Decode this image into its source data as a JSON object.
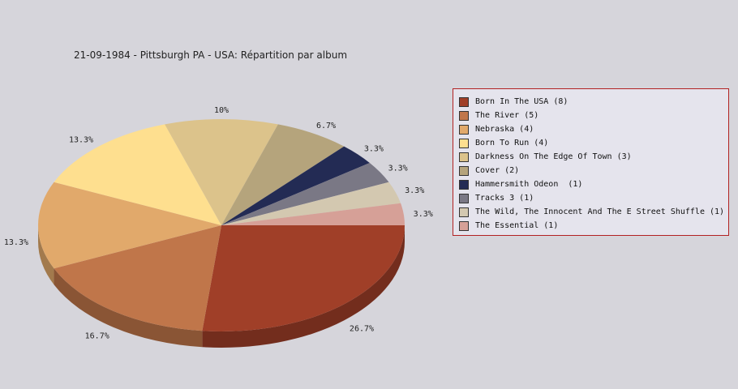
{
  "title": "21-09-1984 - Pittsburgh PA - USA:  Répartition par album",
  "chart_data": {
    "type": "pie",
    "title": "21-09-1984 - Pittsburgh PA - USA:  Répartition par album",
    "slices": [
      {
        "label": "Born In The USA (8)",
        "value": 8,
        "percent": "26.7%",
        "color": "#a03f28"
      },
      {
        "label": "The River (5)",
        "value": 5,
        "percent": "16.7%",
        "color": "#c0764a"
      },
      {
        "label": "Nebraska (4)",
        "value": 4,
        "percent": "13.3%",
        "color": "#e1a96b"
      },
      {
        "label": "Born To Run (4)",
        "value": 4,
        "percent": "13.3%",
        "color": "#fedf8f"
      },
      {
        "label": "Darkness On The Edge Of Town (3)",
        "value": 3,
        "percent": "10%",
        "color": "#dcc38b"
      },
      {
        "label": "Cover (2)",
        "value": 2,
        "percent": "6.7%",
        "color": "#b5a47c"
      },
      {
        "label": "Hammersmith Odeon  (1)",
        "value": 1,
        "percent": "3.3%",
        "color": "#232b54"
      },
      {
        "label": "Tracks 3 (1)",
        "value": 1,
        "percent": "3.3%",
        "color": "#7a7885"
      },
      {
        "label": "The Wild, The Innocent And The E Street Shuffle (1)",
        "value": 1,
        "percent": "3.3%",
        "color": "#d3c8b0"
      },
      {
        "label": "The Essential (1)",
        "value": 1,
        "percent": "3.3%",
        "color": "#d6a097"
      }
    ],
    "legend_position": "right"
  }
}
